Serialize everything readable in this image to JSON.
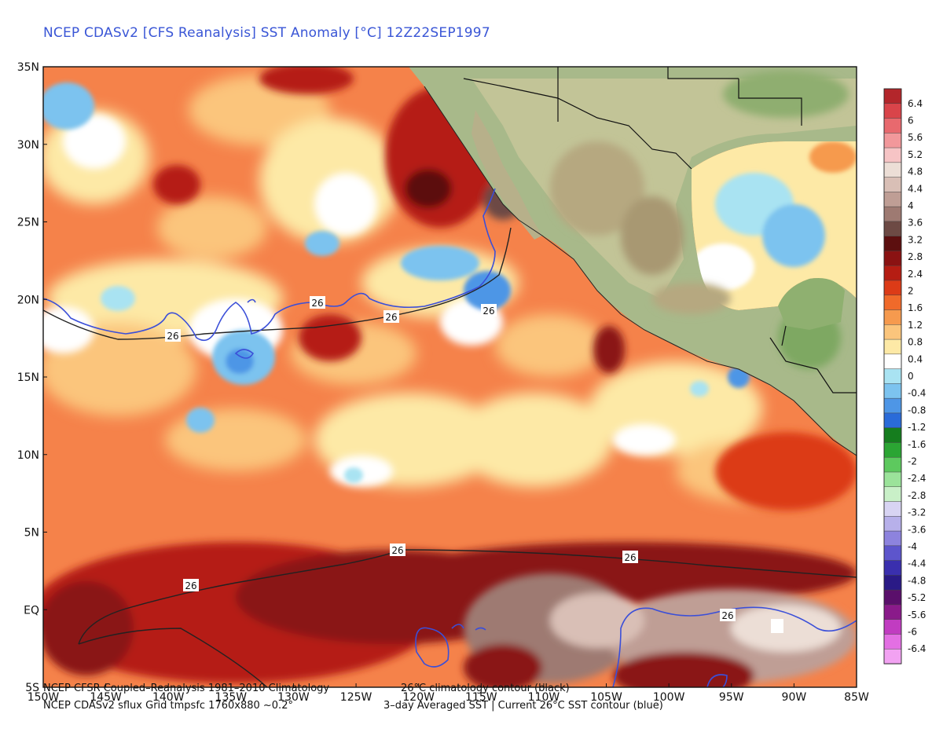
{
  "title": "NCEP CDASv2 [CFS Reanalysis] SST Anomaly [°C] 12Z22SEP1997",
  "lat_labels": [
    "35N",
    "30N",
    "25N",
    "20N",
    "15N",
    "10N",
    "5N",
    "EQ",
    "5S"
  ],
  "lon_labels": [
    "150W",
    "145W",
    "140W",
    "135W",
    "130W",
    "125W",
    "120W",
    "115W",
    "110W",
    "105W",
    "100W",
    "95W",
    "90W",
    "85W"
  ],
  "contour_labels": [
    "26",
    "26",
    "26",
    "26",
    "26",
    "26",
    "26",
    "26"
  ],
  "colorbar_labels": [
    "6.4",
    "6",
    "5.6",
    "5.2",
    "4.8",
    "4.4",
    "4",
    "3.6",
    "3.2",
    "2.8",
    "2.4",
    "2",
    "1.6",
    "1.2",
    "0.8",
    "0.4",
    "0",
    "-0.4",
    "-0.8",
    "-1.2",
    "-1.6",
    "-2",
    "-2.4",
    "-2.8",
    "-3.2",
    "-3.6",
    "-4",
    "-4.4",
    "-4.8",
    "-5.2",
    "-5.6",
    "-6",
    "-6.4"
  ],
  "colorbar_colors": [
    "#b3262b",
    "#d9444a",
    "#e8696e",
    "#f2989b",
    "#f6c4c5",
    "#ecded6",
    "#d9bfb6",
    "#bf9e95",
    "#9e7a72",
    "#6d4a44",
    "#5c0f0f",
    "#8a1212",
    "#b51d13",
    "#dc3b17",
    "#f06a2a",
    "#f69a4e",
    "#fbc57c",
    "#fde9a6",
    "#ffffff",
    "#a9e3f2",
    "#7cc3ef",
    "#4e96e6",
    "#2a6bd9",
    "#157d1e",
    "#2ba533",
    "#5dc95e",
    "#9be39a",
    "#c9f0c8",
    "#d8d4f3",
    "#b7b0ea",
    "#8d83de",
    "#5d55cc",
    "#3a2fae",
    "#2a1a86",
    "#5a0f6b",
    "#8a1a8a",
    "#c13cc1",
    "#e36fe3",
    "#f2a2f2"
  ],
  "footer_line1_left": "NCEP CFSR Coupled–Reanalysis 1981–2010 Climatology",
  "footer_line1_right": "26°C climatology contour (black)",
  "footer_line2_left": "NCEP CDASv2 sflux Grid tmpsfc 1760x880 ~0.2°",
  "footer_line2_right": "3–day Averaged SST | Current 26°C SST contour (blue)"
}
